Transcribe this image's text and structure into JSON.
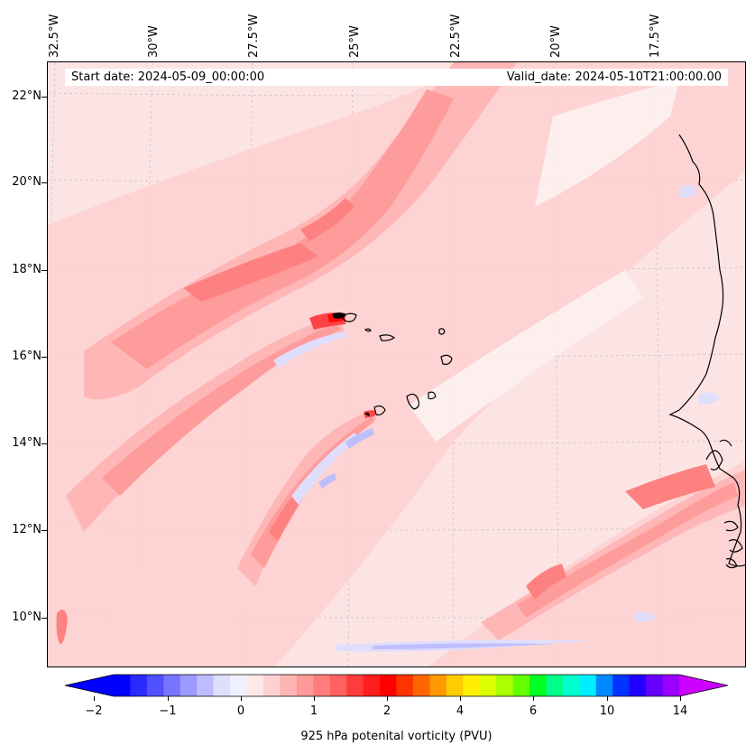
{
  "header": {
    "start_date": "Start date: 2024-05-09_00:00:00",
    "valid_date": "Valid_date: 2024-05-10T21:00:00.00"
  },
  "longitudes": [
    {
      "label": "32.5°W",
      "value": -32.5
    },
    {
      "label": "30°W",
      "value": -30
    },
    {
      "label": "27.5°W",
      "value": -27.5
    },
    {
      "label": "25°W",
      "value": -25
    },
    {
      "label": "22.5°W",
      "value": -22.5
    },
    {
      "label": "20°W",
      "value": -20
    },
    {
      "label": "17.5°W",
      "value": -17.5
    }
  ],
  "latitudes": [
    {
      "label": "22°N",
      "value": 22
    },
    {
      "label": "20°N",
      "value": 20
    },
    {
      "label": "18°N",
      "value": 18
    },
    {
      "label": "16°N",
      "value": 16
    },
    {
      "label": "14°N",
      "value": 14
    },
    {
      "label": "12°N",
      "value": 12
    },
    {
      "label": "10°N",
      "value": 10
    }
  ],
  "colorbar": {
    "title": "925 hPa potenital vorticity (PVU)",
    "tick_labels": [
      "−2",
      "−1",
      "0",
      "1",
      "2",
      "4",
      "6",
      "10",
      "14"
    ],
    "colors": [
      "#0000ff",
      "#2a2aff",
      "#5050ff",
      "#7575ff",
      "#9a9aff",
      "#bcbcff",
      "#dedeff",
      "#f0f0ff",
      "#ffe8e8",
      "#ffd0d0",
      "#ffb4b4",
      "#ff9898",
      "#ff7c7c",
      "#ff6060",
      "#ff3c3c",
      "#ff1e1e",
      "#ff0000",
      "#ff3300",
      "#ff6600",
      "#ff9900",
      "#ffcc00",
      "#ffee00",
      "#ddff00",
      "#aaff00",
      "#66ff00",
      "#00ff22",
      "#00ff88",
      "#00ffcc",
      "#00eeff",
      "#0088ff",
      "#0033ff",
      "#2200ff",
      "#6600ff",
      "#9900ff"
    ],
    "extend_min_color": "#0000ff",
    "extend_max_color": "#cc00ff"
  },
  "map": {
    "background_color": "#fde4e4",
    "coastline_color": "#000000"
  }
}
